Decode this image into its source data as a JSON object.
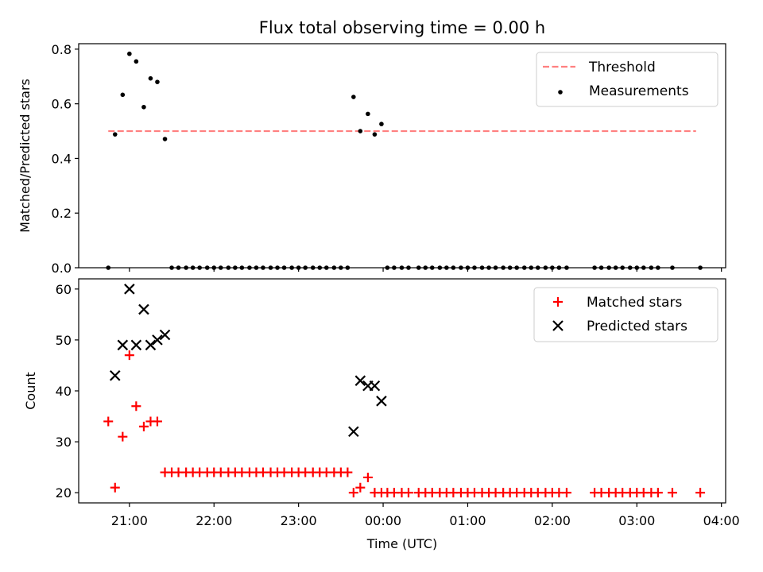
{
  "chart_data": {
    "title": "Flux total observing time = 0.00 h",
    "xlabel": "Time (UTC)",
    "x_unit": "hours since 21:00 UTC",
    "x_ticks": [
      "21:00",
      "22:00",
      "23:00",
      "00:00",
      "01:00",
      "02:00",
      "03:00",
      "04:00"
    ],
    "xlim": [
      -0.6,
      7.05
    ],
    "charts": [
      {
        "type": "scatter",
        "ylabel": "Matched/Predicted stars",
        "ylim": [
          0,
          0.82
        ],
        "y_ticks": [
          "0.0",
          "0.2",
          "0.4",
          "0.6",
          "0.8"
        ],
        "legend": {
          "location": "top-right"
        },
        "threshold": {
          "name": "Threshold",
          "value": 0.5,
          "x_range": [
            -0.25,
            6.7
          ],
          "color": "#ff8080",
          "style": "dashed"
        },
        "series": [
          {
            "name": "Measurements",
            "color": "#000000",
            "marker": "dot",
            "points": [
              [
                -0.25,
                0.0
              ],
              [
                -0.17,
                0.488
              ],
              [
                -0.08,
                0.633
              ],
              [
                0.0,
                0.783
              ],
              [
                0.08,
                0.755
              ],
              [
                0.17,
                0.588
              ],
              [
                0.25,
                0.693
              ],
              [
                0.33,
                0.68
              ],
              [
                0.42,
                0.471
              ],
              [
                0.5,
                0.0
              ],
              [
                0.58,
                0.0
              ],
              [
                0.67,
                0.0
              ],
              [
                0.75,
                0.0
              ],
              [
                0.83,
                0.0
              ],
              [
                0.92,
                0.0
              ],
              [
                1.0,
                0.0
              ],
              [
                1.08,
                0.0
              ],
              [
                1.17,
                0.0
              ],
              [
                1.25,
                0.0
              ],
              [
                1.33,
                0.0
              ],
              [
                1.42,
                0.0
              ],
              [
                1.5,
                0.0
              ],
              [
                1.58,
                0.0
              ],
              [
                1.67,
                0.0
              ],
              [
                1.75,
                0.0
              ],
              [
                1.83,
                0.0
              ],
              [
                1.92,
                0.0
              ],
              [
                2.0,
                0.0
              ],
              [
                2.08,
                0.0
              ],
              [
                2.17,
                0.0
              ],
              [
                2.25,
                0.0
              ],
              [
                2.33,
                0.0
              ],
              [
                2.42,
                0.0
              ],
              [
                2.5,
                0.0
              ],
              [
                2.58,
                0.0
              ],
              [
                2.65,
                0.625
              ],
              [
                2.73,
                0.5
              ],
              [
                2.82,
                0.563
              ],
              [
                2.9,
                0.488
              ],
              [
                2.98,
                0.526
              ],
              [
                3.05,
                0.0
              ],
              [
                3.13,
                0.0
              ],
              [
                3.22,
                0.0
              ],
              [
                3.3,
                0.0
              ],
              [
                3.42,
                0.0
              ],
              [
                3.5,
                0.0
              ],
              [
                3.58,
                0.0
              ],
              [
                3.67,
                0.0
              ],
              [
                3.75,
                0.0
              ],
              [
                3.83,
                0.0
              ],
              [
                3.92,
                0.0
              ],
              [
                4.0,
                0.0
              ],
              [
                4.08,
                0.0
              ],
              [
                4.17,
                0.0
              ],
              [
                4.25,
                0.0
              ],
              [
                4.33,
                0.0
              ],
              [
                4.42,
                0.0
              ],
              [
                4.5,
                0.0
              ],
              [
                4.58,
                0.0
              ],
              [
                4.67,
                0.0
              ],
              [
                4.75,
                0.0
              ],
              [
                4.83,
                0.0
              ],
              [
                4.92,
                0.0
              ],
              [
                5.0,
                0.0
              ],
              [
                5.08,
                0.0
              ],
              [
                5.17,
                0.0
              ],
              [
                5.5,
                0.0
              ],
              [
                5.58,
                0.0
              ],
              [
                5.67,
                0.0
              ],
              [
                5.75,
                0.0
              ],
              [
                5.83,
                0.0
              ],
              [
                5.92,
                0.0
              ],
              [
                6.0,
                0.0
              ],
              [
                6.08,
                0.0
              ],
              [
                6.17,
                0.0
              ],
              [
                6.25,
                0.0
              ],
              [
                6.42,
                0.0
              ],
              [
                6.75,
                0.0
              ]
            ]
          }
        ]
      },
      {
        "type": "scatter",
        "ylabel": "Count",
        "ylim": [
          18,
          62
        ],
        "y_ticks": [
          "20",
          "30",
          "40",
          "50",
          "60"
        ],
        "legend": {
          "location": "top-right"
        },
        "series": [
          {
            "name": "Matched stars",
            "color": "#ff0000",
            "marker": "plus",
            "points": [
              [
                -0.25,
                34
              ],
              [
                -0.17,
                21
              ],
              [
                -0.08,
                31
              ],
              [
                0.0,
                47
              ],
              [
                0.08,
                37
              ],
              [
                0.17,
                33
              ],
              [
                0.25,
                34
              ],
              [
                0.33,
                34
              ],
              [
                0.42,
                24
              ],
              [
                0.5,
                24
              ],
              [
                0.58,
                24
              ],
              [
                0.67,
                24
              ],
              [
                0.75,
                24
              ],
              [
                0.83,
                24
              ],
              [
                0.92,
                24
              ],
              [
                1.0,
                24
              ],
              [
                1.08,
                24
              ],
              [
                1.17,
                24
              ],
              [
                1.25,
                24
              ],
              [
                1.33,
                24
              ],
              [
                1.42,
                24
              ],
              [
                1.5,
                24
              ],
              [
                1.58,
                24
              ],
              [
                1.67,
                24
              ],
              [
                1.75,
                24
              ],
              [
                1.83,
                24
              ],
              [
                1.92,
                24
              ],
              [
                2.0,
                24
              ],
              [
                2.08,
                24
              ],
              [
                2.17,
                24
              ],
              [
                2.25,
                24
              ],
              [
                2.33,
                24
              ],
              [
                2.42,
                24
              ],
              [
                2.5,
                24
              ],
              [
                2.58,
                24
              ],
              [
                2.65,
                20
              ],
              [
                2.73,
                21
              ],
              [
                2.82,
                23
              ],
              [
                2.9,
                20
              ],
              [
                2.98,
                20
              ],
              [
                3.05,
                20
              ],
              [
                3.13,
                20
              ],
              [
                3.22,
                20
              ],
              [
                3.3,
                20
              ],
              [
                3.42,
                20
              ],
              [
                3.5,
                20
              ],
              [
                3.58,
                20
              ],
              [
                3.67,
                20
              ],
              [
                3.75,
                20
              ],
              [
                3.83,
                20
              ],
              [
                3.92,
                20
              ],
              [
                4.0,
                20
              ],
              [
                4.08,
                20
              ],
              [
                4.17,
                20
              ],
              [
                4.25,
                20
              ],
              [
                4.33,
                20
              ],
              [
                4.42,
                20
              ],
              [
                4.5,
                20
              ],
              [
                4.58,
                20
              ],
              [
                4.67,
                20
              ],
              [
                4.75,
                20
              ],
              [
                4.83,
                20
              ],
              [
                4.92,
                20
              ],
              [
                5.0,
                20
              ],
              [
                5.08,
                20
              ],
              [
                5.17,
                20
              ],
              [
                5.5,
                20
              ],
              [
                5.58,
                20
              ],
              [
                5.67,
                20
              ],
              [
                5.75,
                20
              ],
              [
                5.83,
                20
              ],
              [
                5.92,
                20
              ],
              [
                6.0,
                20
              ],
              [
                6.08,
                20
              ],
              [
                6.17,
                20
              ],
              [
                6.25,
                20
              ],
              [
                6.42,
                20
              ],
              [
                6.75,
                20
              ]
            ]
          },
          {
            "name": "Predicted stars",
            "color": "#000000",
            "marker": "x",
            "points": [
              [
                -0.17,
                43
              ],
              [
                -0.08,
                49
              ],
              [
                0.0,
                60
              ],
              [
                0.08,
                49
              ],
              [
                0.17,
                56
              ],
              [
                0.25,
                49
              ],
              [
                0.33,
                50
              ],
              [
                0.42,
                51
              ],
              [
                2.65,
                32
              ],
              [
                2.73,
                42
              ],
              [
                2.82,
                41
              ],
              [
                2.9,
                41
              ],
              [
                2.98,
                38
              ]
            ]
          }
        ]
      }
    ]
  }
}
